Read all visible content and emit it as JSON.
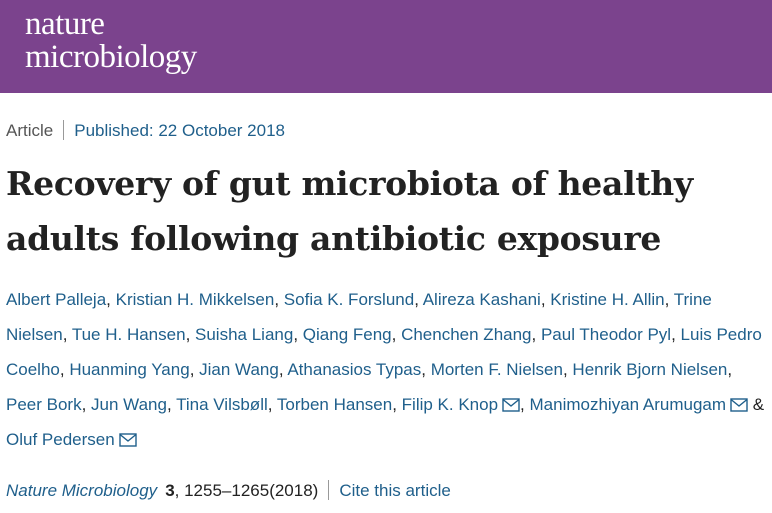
{
  "banner": {
    "logo_line1": "nature",
    "logo_line2": "microbiology",
    "color": "#7b438d"
  },
  "meta": {
    "type": "Article",
    "published": "Published: 22 October 2018"
  },
  "title": "Recovery of gut microbiota of healthy adults following antibiotic exposure",
  "authors": [
    {
      "name": "Albert Palleja",
      "mail": false
    },
    {
      "name": "Kristian H. Mikkelsen",
      "mail": false
    },
    {
      "name": "Sofia K. Forslund",
      "mail": false
    },
    {
      "name": "Alireza Kashani",
      "mail": false
    },
    {
      "name": "Kristine H. Allin",
      "mail": false
    },
    {
      "name": "Trine Nielsen",
      "mail": false
    },
    {
      "name": "Tue H. Hansen",
      "mail": false
    },
    {
      "name": "Suisha Liang",
      "mail": false
    },
    {
      "name": "Qiang Feng",
      "mail": false
    },
    {
      "name": "Chenchen Zhang",
      "mail": false
    },
    {
      "name": "Paul Theodor Pyl",
      "mail": false
    },
    {
      "name": "Luis Pedro Coelho",
      "mail": false
    },
    {
      "name": "Huanming Yang",
      "mail": false
    },
    {
      "name": "Jian Wang",
      "mail": false
    },
    {
      "name": "Athanasios Typas",
      "mail": false
    },
    {
      "name": "Morten F. Nielsen",
      "mail": false
    },
    {
      "name": "Henrik Bjorn Nielsen",
      "mail": false
    },
    {
      "name": "Peer Bork",
      "mail": false
    },
    {
      "name": "Jun Wang",
      "mail": false
    },
    {
      "name": "Tina Vilsbøll",
      "mail": false
    },
    {
      "name": "Torben Hansen",
      "mail": false
    },
    {
      "name": "Filip K. Knop",
      "mail": true
    },
    {
      "name": "Manimozhiyan Arumugam",
      "mail": true
    },
    {
      "name": "Oluf Pedersen",
      "mail": true
    }
  ],
  "author_separator": ", ",
  "author_last_separator": " & ",
  "citation": {
    "journal": "Nature Microbiology",
    "volume": "3",
    "pages": ", 1255–1265(2018)",
    "cite_link": "Cite this article"
  },
  "icons": {
    "mail": "envelope-icon"
  }
}
